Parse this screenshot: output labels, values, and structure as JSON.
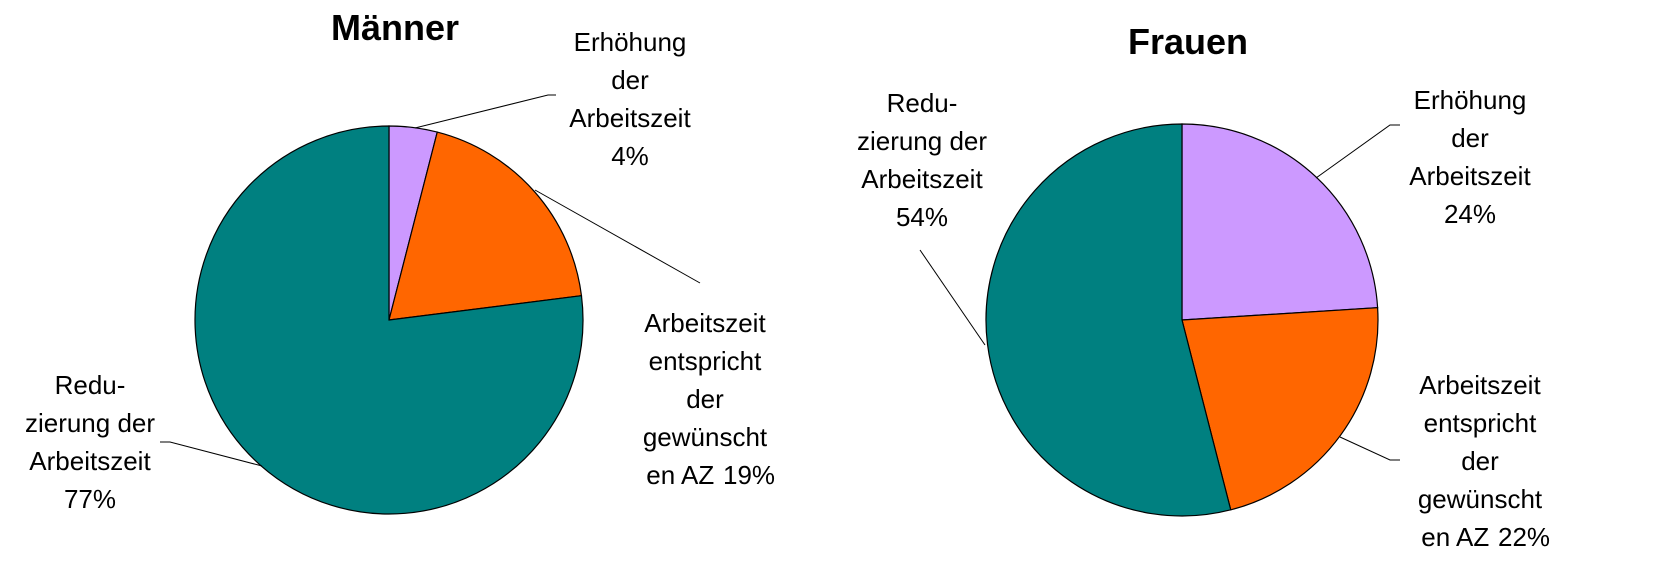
{
  "chart_data": [
    {
      "type": "pie",
      "title": "Männer",
      "categories": [
        "Erhöhung\nder\nArbeitszeit",
        "Arbeitszeit\nentspricht\nder\ngewünscht\nen AZ",
        "Redu-\nzierung der\nArbeitszeit"
      ],
      "values": [
        4,
        19,
        77
      ],
      "value_labels": [
        "4%",
        "19%",
        "77%"
      ],
      "colors": [
        "#cc99ff",
        "#ff6600",
        "#008080"
      ]
    },
    {
      "type": "pie",
      "title": "Frauen",
      "categories": [
        "Erhöhung\nder\nArbeitszeit",
        "Arbeitszeit\nentspricht\nder\ngewünscht\nen AZ",
        "Redu-\nzierung der\nArbeitszeit"
      ],
      "values": [
        24,
        22,
        54
      ],
      "value_labels": [
        "24%",
        "22%",
        "54%"
      ],
      "colors": [
        "#cc99ff",
        "#ff6600",
        "#008080"
      ]
    }
  ]
}
